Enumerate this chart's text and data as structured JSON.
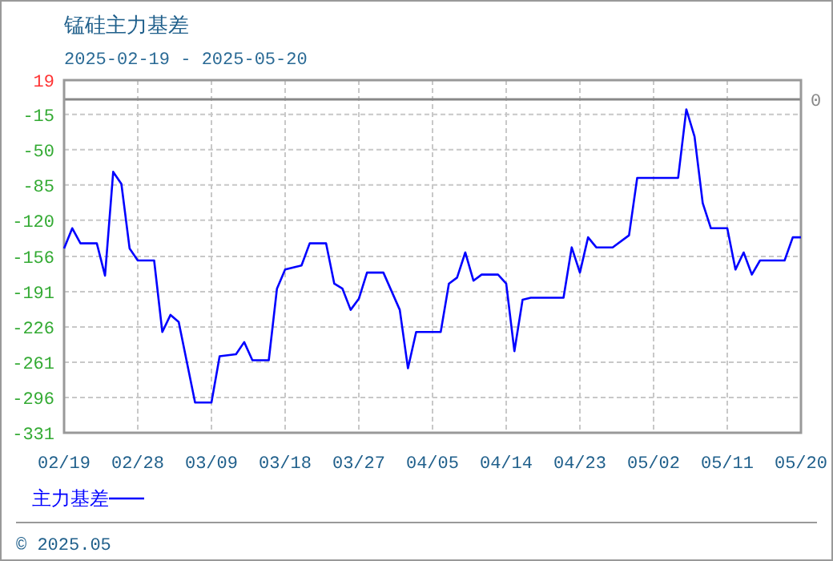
{
  "chart_data": {
    "type": "line",
    "title": "锰硅主力基差",
    "subtitle": "2025-02-19 - 2025-05-20",
    "x": [
      "2025-02-19",
      "2025-02-20",
      "2025-02-21",
      "2025-02-23",
      "2025-02-24",
      "2025-02-25",
      "2025-02-26",
      "2025-02-27",
      "2025-02-28",
      "2025-03-02",
      "2025-03-03",
      "2025-03-04",
      "2025-03-05",
      "2025-03-07",
      "2025-03-09",
      "2025-03-10",
      "2025-03-12",
      "2025-03-13",
      "2025-03-14",
      "2025-03-16",
      "2025-03-17",
      "2025-03-18",
      "2025-03-20",
      "2025-03-21",
      "2025-03-23",
      "2025-03-24",
      "2025-03-25",
      "2025-03-26",
      "2025-03-27",
      "2025-03-28",
      "2025-03-30",
      "2025-04-01",
      "2025-04-02",
      "2025-04-03",
      "2025-04-06",
      "2025-04-07",
      "2025-04-08",
      "2025-04-09",
      "2025-04-10",
      "2025-04-11",
      "2025-04-13",
      "2025-04-14",
      "2025-04-15",
      "2025-04-16",
      "2025-04-17",
      "2025-04-21",
      "2025-04-22",
      "2025-04-23",
      "2025-04-24",
      "2025-04-25",
      "2025-04-27",
      "2025-04-29",
      "2025-04-30",
      "2025-05-05",
      "2025-05-06",
      "2025-05-07",
      "2025-05-08",
      "2025-05-09",
      "2025-05-11",
      "2025-05-12",
      "2025-05-13",
      "2025-05-14",
      "2025-05-15",
      "2025-05-18",
      "2025-05-19",
      "2025-05-20"
    ],
    "series": [
      {
        "name": "主力基差",
        "color": "#0000ff",
        "values": [
          -148,
          -128,
          -143,
          -143,
          -175,
          -72,
          -84,
          -148,
          -160,
          -160,
          -231,
          -214,
          -221,
          -301,
          -301,
          -255,
          -253,
          -241,
          -259,
          -259,
          -188,
          -169,
          -165,
          -143,
          -143,
          -183,
          -188,
          -209,
          -198,
          -172,
          -172,
          -209,
          -267,
          -231,
          -231,
          -183,
          -177,
          -152,
          -180,
          -174,
          -174,
          -183,
          -250,
          -199,
          -197,
          -197,
          -147,
          -172,
          -137,
          -147,
          -147,
          -135,
          -78,
          -78,
          -10,
          -37,
          -103,
          -128,
          -128,
          -169,
          -152,
          -174,
          -160,
          -160,
          -137,
          -137
        ]
      }
    ],
    "xlim": [
      "2025-02-19",
      "2025-05-20"
    ],
    "xticks": [
      {
        "value": "2025-02-19",
        "label": "02/19"
      },
      {
        "value": "2025-02-28",
        "label": "02/28"
      },
      {
        "value": "2025-03-09",
        "label": "03/09"
      },
      {
        "value": "2025-03-18",
        "label": "03/18"
      },
      {
        "value": "2025-03-27",
        "label": "03/27"
      },
      {
        "value": "2025-04-05",
        "label": "04/05"
      },
      {
        "value": "2025-04-14",
        "label": "04/14"
      },
      {
        "value": "2025-04-23",
        "label": "04/23"
      },
      {
        "value": "2025-05-02",
        "label": "05/02"
      },
      {
        "value": "2025-05-11",
        "label": "05/11"
      },
      {
        "value": "2025-05-20",
        "label": "05/20"
      }
    ],
    "ylim": [
      -331,
      19
    ],
    "yticks": [
      -331,
      -296,
      -261,
      -226,
      -191,
      -156,
      -120,
      -85,
      -50,
      -15,
      19
    ],
    "ref_lines": [
      {
        "axis": "y",
        "value": 0,
        "label": "0",
        "color": "#888888"
      }
    ],
    "grid": true,
    "legend": "bottom left",
    "marker": "none",
    "line_style": "solid",
    "annotations": [
      "© 2025.05"
    ]
  }
}
